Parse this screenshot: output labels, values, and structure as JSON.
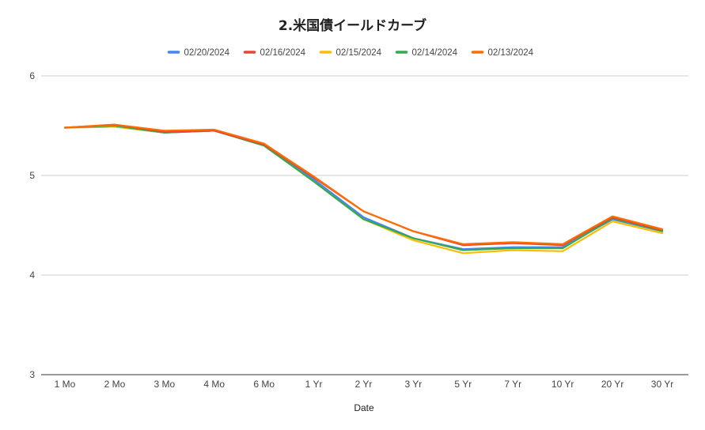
{
  "chart_data": {
    "type": "line",
    "title": "2.米国債イールドカーブ",
    "xlabel": "Date",
    "ylabel": "",
    "ylim": [
      3,
      6
    ],
    "yticks": [
      "3",
      "4",
      "5",
      "6"
    ],
    "grid": true,
    "legend_position": "top",
    "categories": [
      "1 Mo",
      "2 Mo",
      "3 Mo",
      "4 Mo",
      "6 Mo",
      "1 Yr",
      "2 Yr",
      "3 Yr",
      "5 Yr",
      "7 Yr",
      "10 Yr",
      "20 Yr",
      "30 Yr"
    ],
    "series": [
      {
        "name": "02/20/2024",
        "color": "#4285f4",
        "values": [
          5.48,
          5.49,
          5.43,
          5.45,
          5.31,
          4.96,
          4.58,
          4.37,
          4.26,
          4.28,
          4.28,
          4.56,
          4.44
        ]
      },
      {
        "name": "02/16/2024",
        "color": "#ea4335",
        "values": [
          5.48,
          5.51,
          5.44,
          5.45,
          5.31,
          4.98,
          4.64,
          4.44,
          4.3,
          4.32,
          4.3,
          4.58,
          4.45
        ]
      },
      {
        "name": "02/15/2024",
        "color": "#fbbc04",
        "values": [
          5.48,
          5.49,
          5.43,
          5.45,
          5.3,
          4.94,
          4.56,
          4.35,
          4.22,
          4.25,
          4.24,
          4.54,
          4.42
        ]
      },
      {
        "name": "02/14/2024",
        "color": "#34a853",
        "values": [
          5.48,
          5.5,
          5.43,
          5.45,
          5.3,
          4.94,
          4.56,
          4.37,
          4.25,
          4.27,
          4.27,
          4.57,
          4.44
        ]
      },
      {
        "name": "02/13/2024",
        "color": "#ff6d01",
        "values": [
          5.48,
          5.51,
          5.45,
          5.46,
          5.32,
          4.99,
          4.64,
          4.44,
          4.31,
          4.33,
          4.31,
          4.59,
          4.46
        ]
      }
    ]
  }
}
